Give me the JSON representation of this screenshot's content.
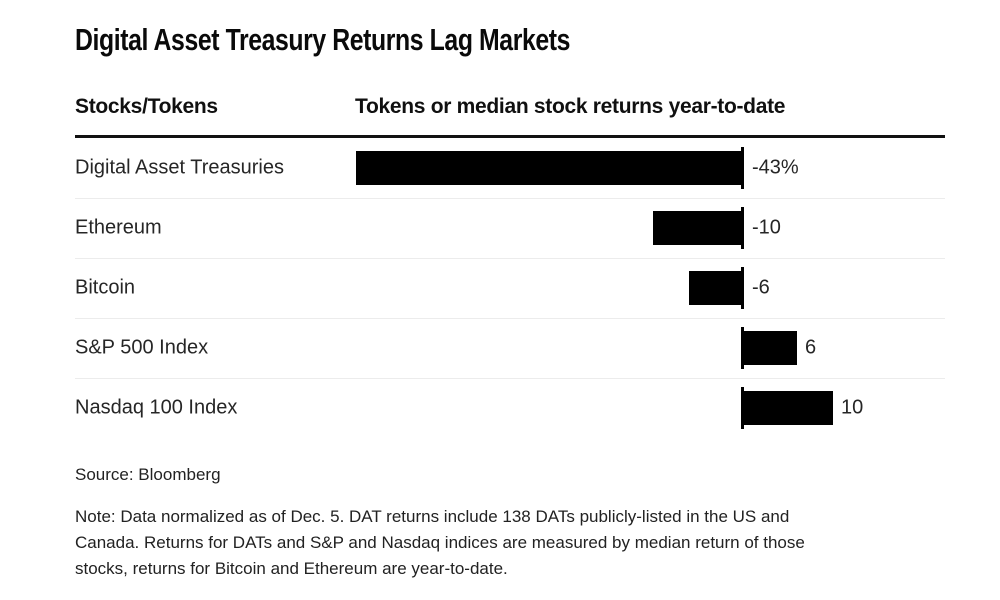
{
  "title": "Digital Asset Treasury Returns Lag Markets",
  "header": {
    "col1": "Stocks/Tokens",
    "col2": "Tokens or median stock returns year-to-date"
  },
  "source": "Source: Bloomberg",
  "note_lines": [
    "Note: Data normalized as of Dec. 5. DAT returns include 138 DATs publicly-listed in the US and",
    "Canada. Returns for DATs and S&P and Nasdaq indices are measured by median return of those",
    "stocks, returns for Bitcoin and Ethereum are year-to-date."
  ],
  "colors": {
    "bar": "#000000",
    "baseline": "#000000",
    "separator": "#ececec",
    "text": "#262626"
  },
  "chart_data": {
    "type": "bar",
    "orientation": "horizontal",
    "title": "Digital Asset Treasury Returns Lag Markets",
    "xlabel": "Tokens or median stock returns year-to-date",
    "categories": [
      "Digital Asset Treasuries",
      "Ethereum",
      "Bitcoin",
      "S&P 500 Index",
      "Nasdaq 100 Index"
    ],
    "values": [
      -43,
      -10,
      -6,
      6,
      10
    ],
    "labels": [
      "-43%",
      "-10",
      "-6",
      "6",
      "10"
    ],
    "unit": "percent",
    "baseline": 0,
    "xlim": [
      -43,
      10
    ],
    "grid": false,
    "legend": false,
    "row_separators": true
  }
}
